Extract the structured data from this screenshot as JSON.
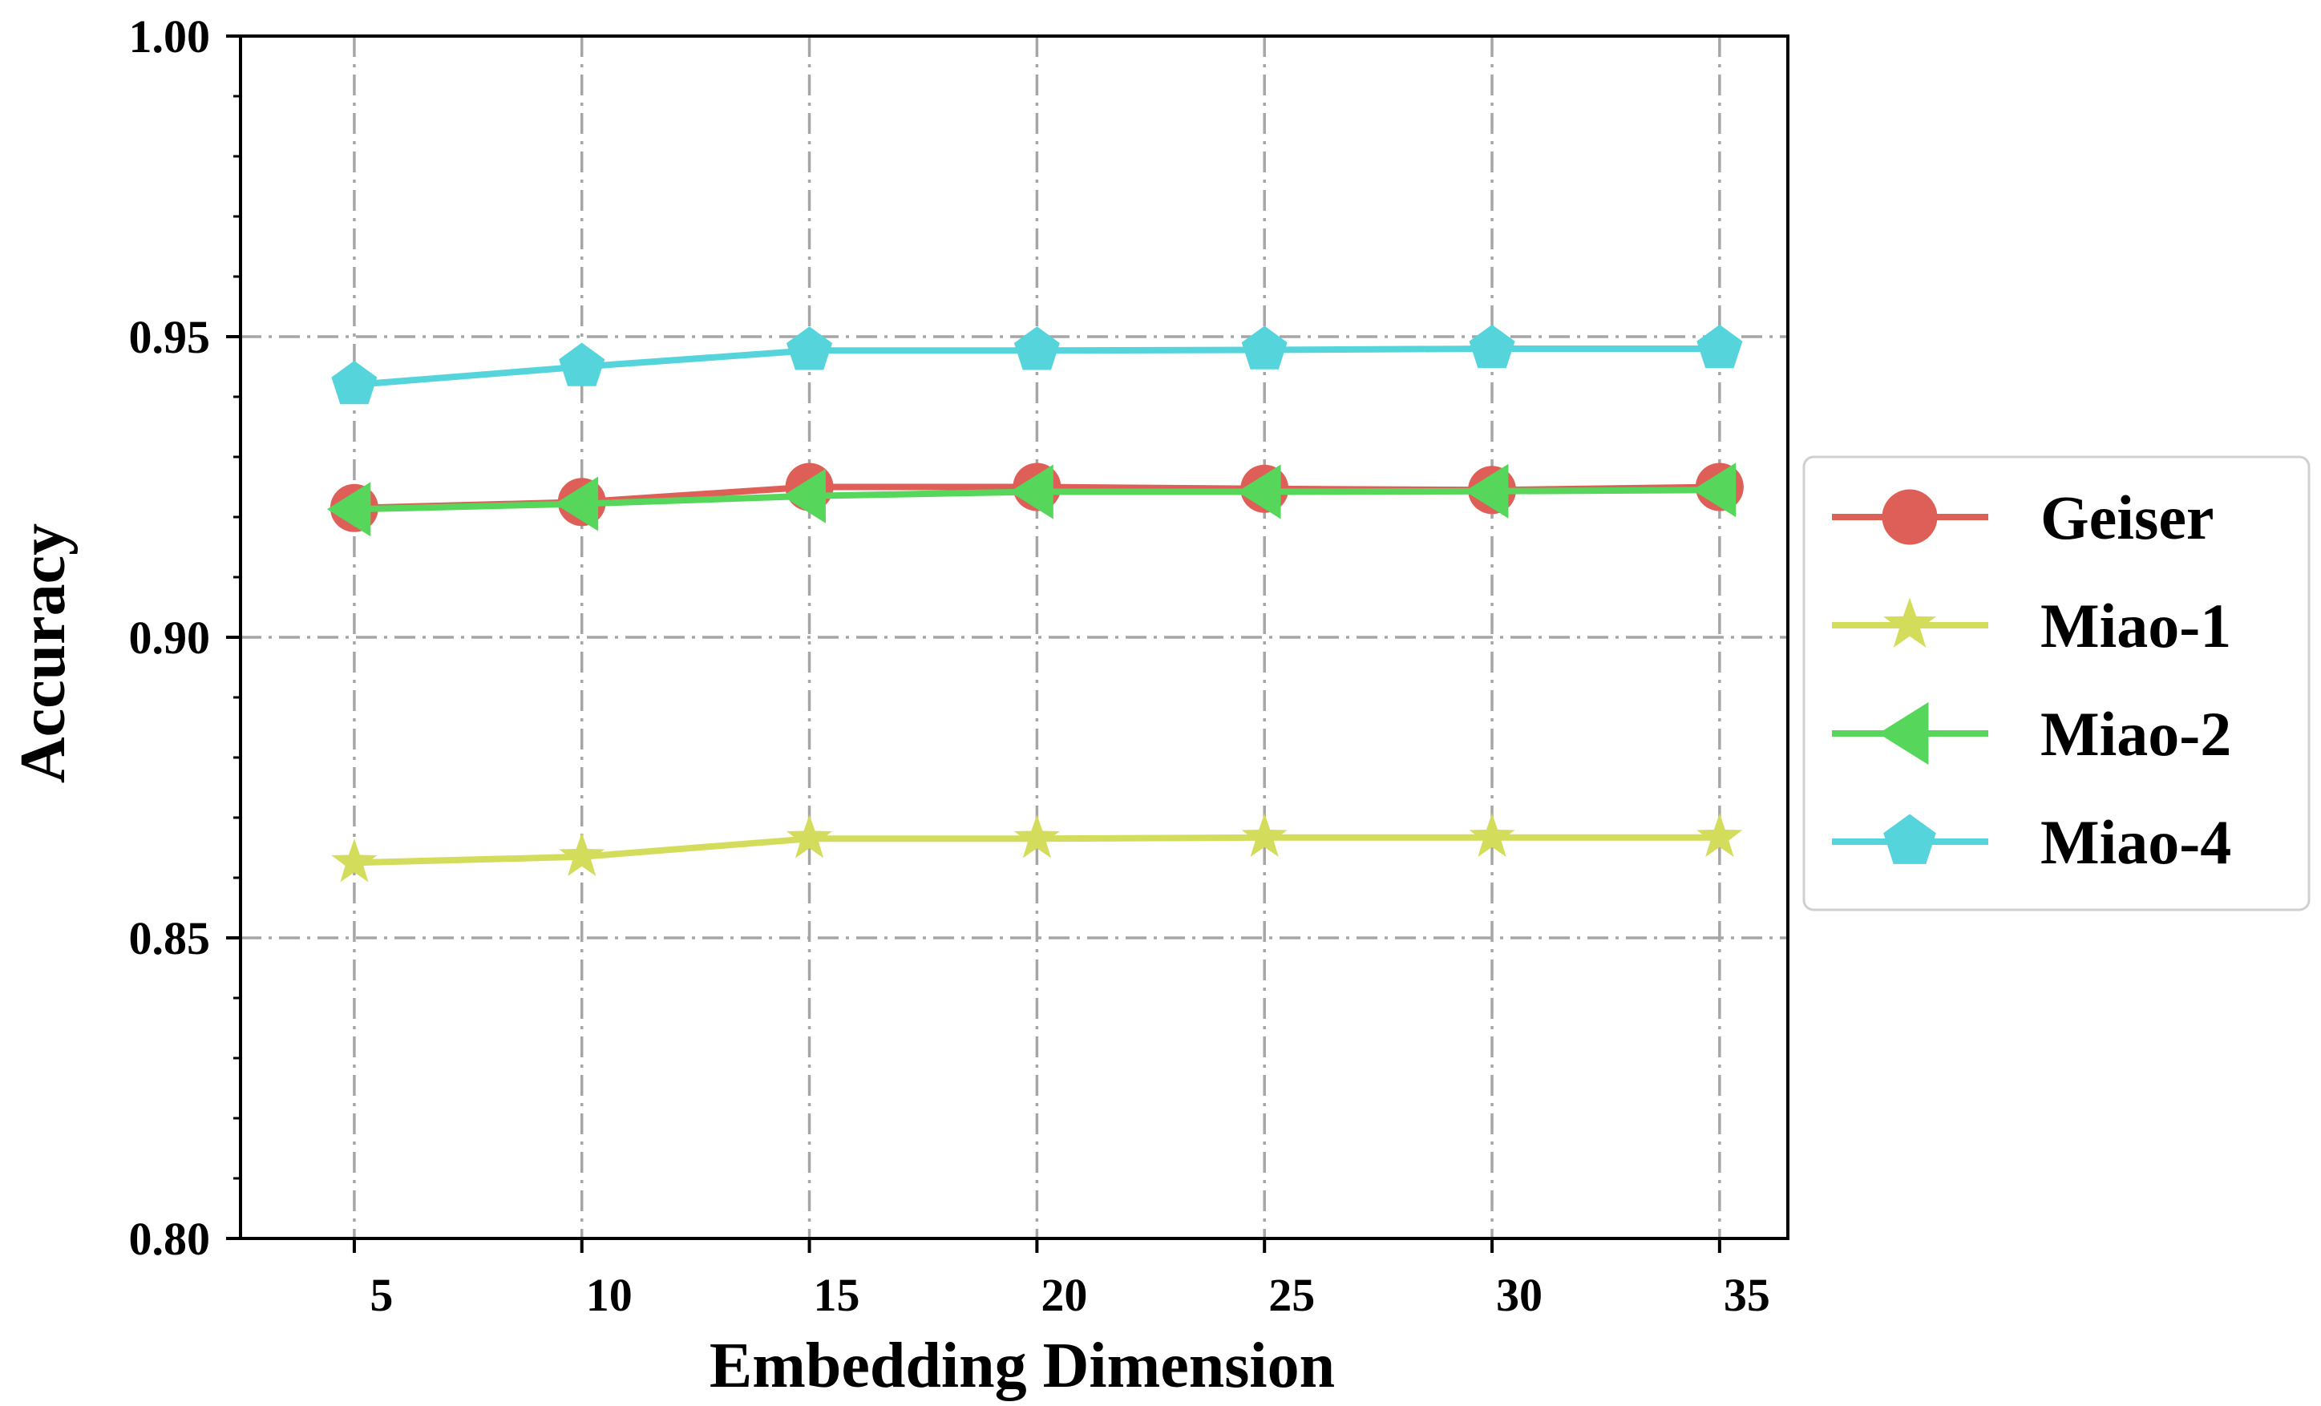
{
  "chart_data": {
    "type": "line",
    "title": "",
    "xlabel": "Embedding Dimension",
    "ylabel": "Accuracy",
    "x": [
      5,
      10,
      15,
      20,
      25,
      30,
      35
    ],
    "x_tick_labels": [
      "5",
      "10",
      "15",
      "20",
      "25",
      "30",
      "35"
    ],
    "xlim": [
      2.5,
      36.5
    ],
    "ylim": [
      0.8,
      1.0
    ],
    "y_ticks": [
      0.8,
      0.85,
      0.9,
      0.95,
      1.0
    ],
    "y_tick_labels": [
      "0.80",
      "0.85",
      "0.90",
      "0.95",
      "1.00"
    ],
    "grid": true,
    "legend_position": "center-right outside",
    "series": [
      {
        "name": "Geiser",
        "marker": "circle",
        "color": "#de5f57",
        "values": [
          0.9215,
          0.9225,
          0.925,
          0.925,
          0.9247,
          0.9245,
          0.925
        ]
      },
      {
        "name": "Miao-1",
        "marker": "star",
        "color": "#d4dc5c",
        "values": [
          0.8625,
          0.8635,
          0.8665,
          0.8665,
          0.8667,
          0.8667,
          0.8667
        ]
      },
      {
        "name": "Miao-2",
        "marker": "triangle-left",
        "color": "#56d65a",
        "values": [
          0.9213,
          0.9222,
          0.9235,
          0.9242,
          0.9242,
          0.9243,
          0.9245
        ]
      },
      {
        "name": "Miao-4",
        "marker": "pentagon",
        "color": "#56d4dc",
        "values": [
          0.942,
          0.945,
          0.9477,
          0.9477,
          0.9478,
          0.948,
          0.948
        ]
      }
    ]
  }
}
